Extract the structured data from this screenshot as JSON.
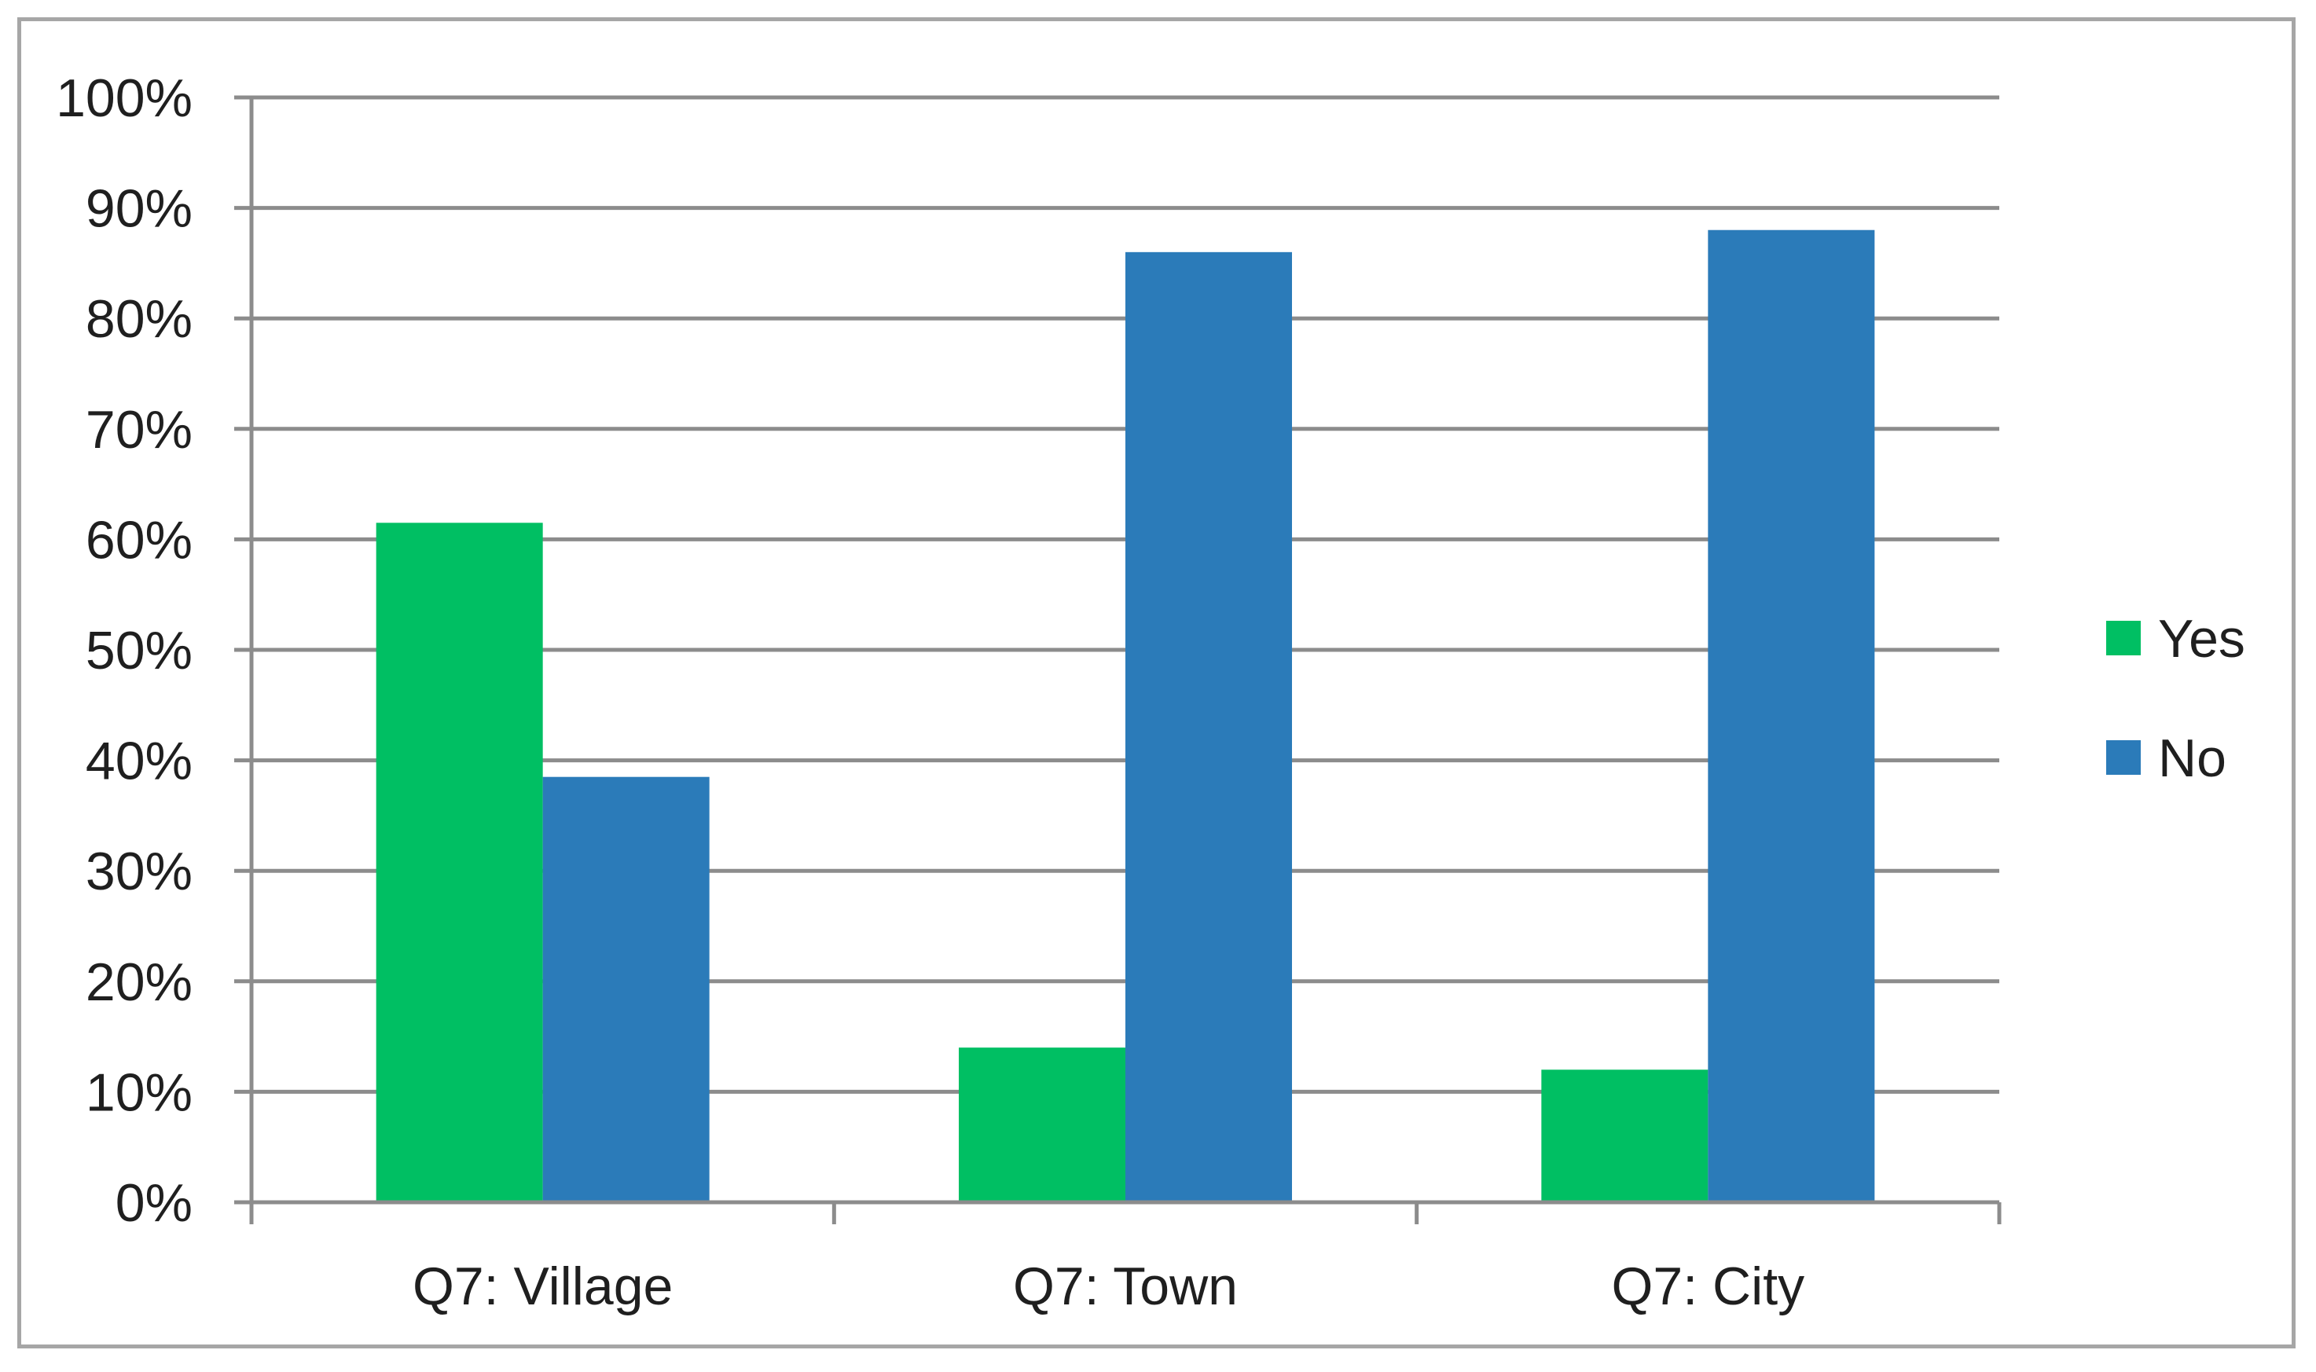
{
  "chart_data": {
    "type": "bar",
    "categories": [
      "Q7: Village",
      "Q7: Town",
      "Q7: City"
    ],
    "series": [
      {
        "name": "Yes",
        "color": "#00bf63",
        "values": [
          61.5,
          14,
          12
        ]
      },
      {
        "name": "No",
        "color": "#2b7bb9",
        "values": [
          38.5,
          86,
          88
        ]
      }
    ],
    "y_ticks": [
      "0%",
      "10%",
      "20%",
      "30%",
      "40%",
      "50%",
      "60%",
      "70%",
      "80%",
      "90%",
      "100%"
    ],
    "ylim": [
      0,
      100
    ],
    "y_unit": "%",
    "grid": true,
    "legend_position": "right",
    "title": "",
    "xlabel": "",
    "ylabel": "",
    "colors": {
      "gridline": "#8c8c8c",
      "axis": "#8c8c8c",
      "frame": "#a6a6a6",
      "text": "#1f1f1f"
    }
  }
}
